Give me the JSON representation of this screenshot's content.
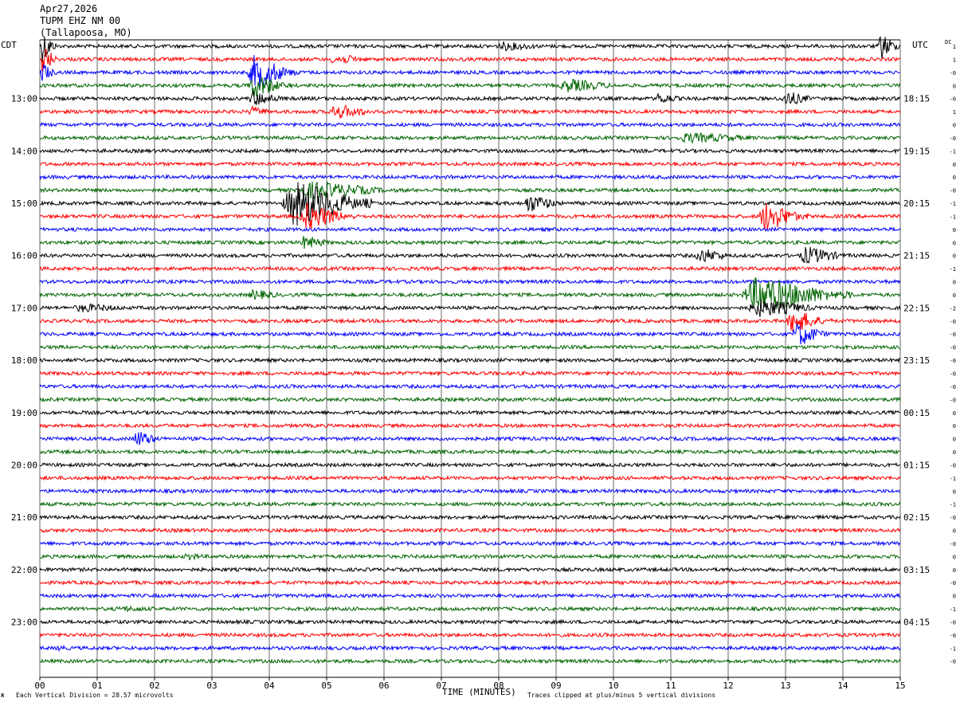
{
  "header": {
    "date": "Apr27,2026",
    "station": "TUPM EHZ NM 00",
    "location": "(Tallapoosa, MO)"
  },
  "left_zone": "CDT",
  "right_zone": "UTC",
  "dc_label": "DC",
  "footer": {
    "vertical_division": "Each Vertical Division =   28.57 microvolts",
    "clip_note": "Traces clipped at plus/minus 5 vertical divisions",
    "corner_mark": "Ж"
  },
  "colors": {
    "cycle": [
      "#000000",
      "#ff0000",
      "#0000ff",
      "#006400"
    ],
    "grid": "#000000"
  },
  "chart_data": {
    "type": "helicorder",
    "title": "Apr27,2026 TUPM EHZ NM 00 (Tallapoosa, MO)",
    "xlabel": "TIME (MINUTES)",
    "xlim": [
      0,
      15
    ],
    "x_ticks": [
      "00",
      "01",
      "02",
      "03",
      "04",
      "05",
      "06",
      "07",
      "08",
      "09",
      "10",
      "11",
      "12",
      "13",
      "14",
      "15"
    ],
    "minutes_per_line": 15,
    "lines_count": 48,
    "left_hour_labels": [
      "13:00",
      "14:00",
      "15:00",
      "16:00",
      "17:00",
      "18:00",
      "19:00",
      "20:00",
      "21:00",
      "22:00",
      "23:00"
    ],
    "right_hour_labels": [
      "18:15",
      "19:15",
      "20:15",
      "21:15",
      "22:15",
      "23:15",
      "00:15",
      "01:15",
      "02:15",
      "03:15",
      "04:15"
    ],
    "first_labeled_line": 4,
    "lines_per_hour": 4,
    "dc_offsets": [
      "1",
      "1",
      "-0",
      "0",
      "-0",
      "1",
      "0",
      "-0",
      "-1",
      "0",
      "0",
      "-0",
      "-1",
      "-1",
      "0",
      "0",
      "0",
      "-1",
      "0",
      "0",
      "-2",
      "-0",
      "-0",
      "-0",
      "-0",
      "-0",
      "-0",
      "-0",
      "0",
      "0",
      "0",
      "0",
      "-0",
      "-1",
      "0",
      "-1",
      "-0",
      "0",
      "-0",
      "0",
      "0",
      "-0",
      "0",
      "-1",
      "-0",
      "-0",
      "-1",
      "-0"
    ],
    "events": [
      {
        "line": 0,
        "start_min": 0.0,
        "dur_min": 0.3,
        "amp": 22
      },
      {
        "line": 1,
        "start_min": 0.0,
        "dur_min": 0.3,
        "amp": 22
      },
      {
        "line": 2,
        "start_min": 0.0,
        "dur_min": 0.3,
        "amp": 14
      },
      {
        "line": 0,
        "start_min": 14.6,
        "dur_min": 0.4,
        "amp": 18
      },
      {
        "line": 0,
        "start_min": 7.9,
        "dur_min": 1.2,
        "amp": 6
      },
      {
        "line": 2,
        "start_min": 3.6,
        "dur_min": 0.9,
        "amp": 22
      },
      {
        "line": 3,
        "start_min": 3.6,
        "dur_min": 0.8,
        "amp": 16
      },
      {
        "line": 4,
        "start_min": 3.6,
        "dur_min": 0.8,
        "amp": 10
      },
      {
        "line": 1,
        "start_min": 5.0,
        "dur_min": 1.0,
        "amp": 7
      },
      {
        "line": 5,
        "start_min": 5.0,
        "dur_min": 1.0,
        "amp": 10
      },
      {
        "line": 5,
        "start_min": 3.6,
        "dur_min": 0.6,
        "amp": 7
      },
      {
        "line": 3,
        "start_min": 9.0,
        "dur_min": 1.3,
        "amp": 9
      },
      {
        "line": 4,
        "start_min": 10.7,
        "dur_min": 0.6,
        "amp": 8
      },
      {
        "line": 4,
        "start_min": 12.9,
        "dur_min": 0.7,
        "amp": 10
      },
      {
        "line": 7,
        "start_min": 11.0,
        "dur_min": 2.0,
        "amp": 7
      },
      {
        "line": 12,
        "start_min": 4.2,
        "dur_min": 1.6,
        "amp": 30
      },
      {
        "line": 13,
        "start_min": 4.5,
        "dur_min": 1.0,
        "amp": 18
      },
      {
        "line": 11,
        "start_min": 4.4,
        "dur_min": 2.0,
        "amp": 12
      },
      {
        "line": 12,
        "start_min": 8.4,
        "dur_min": 0.8,
        "amp": 12
      },
      {
        "line": 13,
        "start_min": 12.5,
        "dur_min": 0.9,
        "amp": 20
      },
      {
        "line": 15,
        "start_min": 4.5,
        "dur_min": 0.7,
        "amp": 9
      },
      {
        "line": 16,
        "start_min": 11.4,
        "dur_min": 0.8,
        "amp": 10
      },
      {
        "line": 16,
        "start_min": 13.2,
        "dur_min": 1.0,
        "amp": 12
      },
      {
        "line": 19,
        "start_min": 12.2,
        "dur_min": 2.0,
        "amp": 24
      },
      {
        "line": 20,
        "start_min": 12.3,
        "dur_min": 1.5,
        "amp": 12
      },
      {
        "line": 21,
        "start_min": 13.0,
        "dur_min": 0.8,
        "amp": 16
      },
      {
        "line": 22,
        "start_min": 13.1,
        "dur_min": 0.7,
        "amp": 16
      },
      {
        "line": 19,
        "start_min": 3.6,
        "dur_min": 0.8,
        "amp": 7
      },
      {
        "line": 20,
        "start_min": 0.5,
        "dur_min": 1.5,
        "amp": 6
      },
      {
        "line": 30,
        "start_min": 1.6,
        "dur_min": 0.6,
        "amp": 11
      },
      {
        "line": 39,
        "start_min": 2.5,
        "dur_min": 0.5,
        "amp": 6
      },
      {
        "line": 43,
        "start_min": 1.2,
        "dur_min": 1.5,
        "amp": 4
      },
      {
        "line": 46,
        "start_min": 0.3,
        "dur_min": 0.2,
        "amp": 6
      }
    ]
  }
}
